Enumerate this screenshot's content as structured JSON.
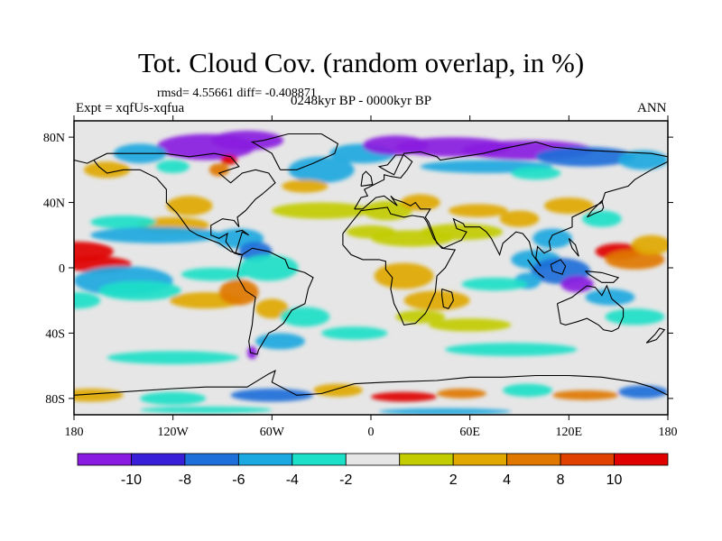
{
  "header": {
    "title": "Tot. Cloud Cov. (random overlap, in %)",
    "stats": "rmsd= 4.55661 diff= -0.408871",
    "experiment": "Expt = xqfUs-xqfua",
    "period": "0248kyr BP - 0000kyr BP",
    "season": "ANN"
  },
  "map": {
    "projection": "cylindrical-equidistant",
    "lon_range": [
      -180,
      180
    ],
    "lat_range": [
      -90,
      90
    ],
    "lat_ticks": [
      {
        "value": 80,
        "label": "80N"
      },
      {
        "value": 40,
        "label": "40N"
      },
      {
        "value": 0,
        "label": "0"
      },
      {
        "value": -40,
        "label": "40S"
      },
      {
        "value": -80,
        "label": "80S"
      }
    ],
    "lon_ticks": [
      {
        "value": -180,
        "label": "180"
      },
      {
        "value": -120,
        "label": "120W"
      },
      {
        "value": -60,
        "label": "60W"
      },
      {
        "value": 0,
        "label": "0"
      },
      {
        "value": 60,
        "label": "60E"
      },
      {
        "value": 120,
        "label": "120E"
      },
      {
        "value": 180,
        "label": "180"
      }
    ],
    "background_color": "#e6e6e6"
  },
  "colorbar": {
    "colors": [
      "#8a1be0",
      "#3a1fd8",
      "#1e6fd9",
      "#1ca8e0",
      "#1ce0c8",
      "#e6e6e6",
      "#c2cc00",
      "#e0a800",
      "#e07800",
      "#e04000",
      "#e00000"
    ],
    "labels": [
      "-10",
      "-8",
      "-6",
      "-4",
      "-2",
      "2",
      "4",
      "8",
      "10"
    ]
  },
  "chart_data": {
    "type": "heatmap",
    "variable": "Tot. Cloud Cov. (random overlap, in %)",
    "levels": [
      -10,
      -8,
      -6,
      -4,
      -2,
      2,
      4,
      8,
      10
    ],
    "features": [
      {
        "lon": -170,
        "lat": 4,
        "value": 10
      },
      {
        "lon": -150,
        "lat": -10,
        "value": -6
      },
      {
        "lon": -100,
        "lat": 72,
        "value": -10
      },
      {
        "lon": -92,
        "lat": 58,
        "value": 8
      },
      {
        "lon": -118,
        "lat": 38,
        "value": 4
      },
      {
        "lon": -80,
        "lat": 20,
        "value": -6
      },
      {
        "lon": -100,
        "lat": -20,
        "value": 4
      },
      {
        "lon": 20,
        "lat": 72,
        "value": -10
      },
      {
        "lon": 90,
        "lat": 70,
        "value": -10
      },
      {
        "lon": 160,
        "lat": 8,
        "value": 10
      },
      {
        "lon": 120,
        "lat": -5,
        "value": -8
      },
      {
        "lon": 30,
        "lat": -15,
        "value": 4
      },
      {
        "lon": 10,
        "lat": 20,
        "value": 2
      },
      {
        "lon": 60,
        "lat": 25,
        "value": 2
      },
      {
        "lon": -40,
        "lat": -30,
        "value": -4
      },
      {
        "lon": 40,
        "lat": -78,
        "value": 8
      },
      {
        "lon": -60,
        "lat": -78,
        "value": -8
      }
    ]
  }
}
